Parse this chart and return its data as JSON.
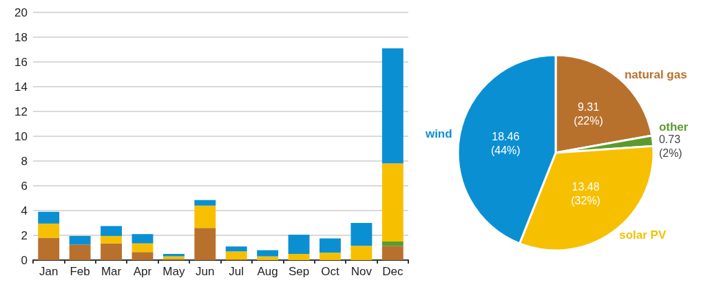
{
  "chart_data": [
    {
      "type": "bar",
      "stacked": true,
      "categories": [
        "Jan",
        "Feb",
        "Mar",
        "Apr",
        "May",
        "Jun",
        "Jul",
        "Aug",
        "Sep",
        "Oct",
        "Nov",
        "Dec"
      ],
      "series": [
        {
          "color": "#b8712d",
          "values": [
            1.8,
            1.25,
            1.35,
            0.65,
            0.1,
            2.6,
            0.05,
            0,
            0,
            0,
            0,
            1.15
          ]
        },
        {
          "color": "#5b9a2e",
          "values": [
            0,
            0,
            0,
            0,
            0,
            0,
            0,
            0,
            0,
            0,
            0,
            0.35
          ]
        },
        {
          "color": "#f6c000",
          "values": [
            1.15,
            0,
            0.6,
            0.7,
            0.2,
            1.8,
            0.65,
            0.3,
            0.5,
            0.6,
            1.15,
            6.3
          ]
        },
        {
          "color": "#0b8fd3",
          "values": [
            0.95,
            0.7,
            0.8,
            0.75,
            0.2,
            0.45,
            0.4,
            0.5,
            1.55,
            1.15,
            1.85,
            9.3
          ]
        }
      ],
      "ylim": [
        0,
        20
      ],
      "yticks": [
        0,
        2,
        4,
        6,
        8,
        10,
        12,
        14,
        16,
        18,
        20
      ],
      "grid": "y",
      "legend": false
    },
    {
      "type": "pie",
      "categories": [
        "natural gas",
        "other",
        "solar PV",
        "wind"
      ],
      "values": [
        9.31,
        0.73,
        13.48,
        18.46
      ],
      "colors": [
        "#b8712d",
        "#5b9a2e",
        "#f6c000",
        "#0b8fd3"
      ],
      "value_labels": [
        "9.31\n(22%)",
        "0.73\n(2%)",
        "13.48\n(32%)",
        "18.46\n(44%)"
      ],
      "legend": false
    }
  ]
}
